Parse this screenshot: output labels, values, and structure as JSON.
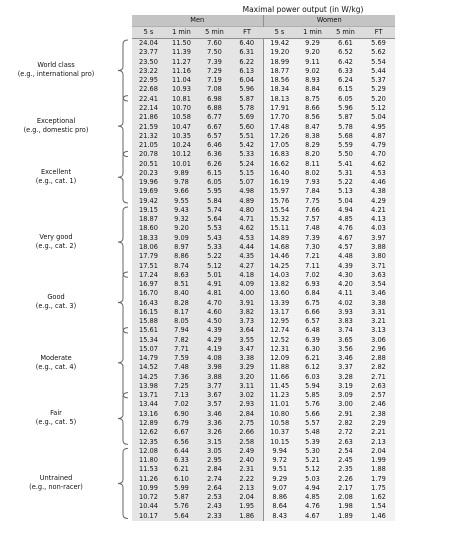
{
  "title": "Maximal power output (in W/kg)",
  "groups": [
    "Men",
    "Women"
  ],
  "subheaders": [
    "5 s",
    "1 min",
    "5 min",
    "FT",
    "5 s",
    "1 min",
    "5 min",
    "FT"
  ],
  "categories": [
    {
      "line1": "World class",
      "line2": "(e.g., international pro)"
    },
    {
      "line1": "Exceptional",
      "line2": "(e.g., domestic pro)"
    },
    {
      "line1": "Excellent",
      "line2": "(e.g., cat. 1)"
    },
    {
      "line1": "Very good",
      "line2": "(e.g., cat. 2)"
    },
    {
      "line1": "Good",
      "line2": "(e.g., cat. 3)"
    },
    {
      "line1": "Moderate",
      "line2": "(e.g., cat. 4)"
    },
    {
      "line1": "Fair",
      "line2": "(e.g., cat. 5)"
    },
    {
      "line1": "Untrained",
      "line2": "(e.g., non-racer)"
    }
  ],
  "rows": [
    [
      "24.04",
      "11.50",
      "7.60",
      "6.40",
      "19.42",
      "9.29",
      "6.61",
      "5.69"
    ],
    [
      "23.77",
      "11.39",
      "7.50",
      "6.31",
      "19.20",
      "9.20",
      "6.52",
      "5.62"
    ],
    [
      "23.50",
      "11.27",
      "7.39",
      "6.22",
      "18.99",
      "9.11",
      "6.42",
      "5.54"
    ],
    [
      "23.22",
      "11.16",
      "7.29",
      "6.13",
      "18.77",
      "9.02",
      "6.33",
      "5.44"
    ],
    [
      "22.95",
      "11.04",
      "7.19",
      "6.04",
      "18.56",
      "8.93",
      "6.24",
      "5.37"
    ],
    [
      "22.68",
      "10.93",
      "7.08",
      "5.96",
      "18.34",
      "8.84",
      "6.15",
      "5.29"
    ],
    [
      "22.41",
      "10.81",
      "6.98",
      "5.87",
      "18.13",
      "8.75",
      "6.05",
      "5.20"
    ],
    [
      "22.14",
      "10.70",
      "6.88",
      "5.78",
      "17.91",
      "8.66",
      "5.96",
      "5.12"
    ],
    [
      "21.86",
      "10.58",
      "6.77",
      "5.69",
      "17.70",
      "8.56",
      "5.87",
      "5.04"
    ],
    [
      "21.59",
      "10.47",
      "6.67",
      "5.60",
      "17.48",
      "8.47",
      "5.78",
      "4.95"
    ],
    [
      "21.32",
      "10.35",
      "6.57",
      "5.51",
      "17.26",
      "8.38",
      "5.68",
      "4.87"
    ],
    [
      "21.05",
      "10.24",
      "6.46",
      "5.42",
      "17.05",
      "8.29",
      "5.59",
      "4.79"
    ],
    [
      "20.78",
      "10.12",
      "6.36",
      "5.33",
      "16.83",
      "8.20",
      "5.50",
      "4.70"
    ],
    [
      "20.51",
      "10.01",
      "6.26",
      "5.24",
      "16.62",
      "8.11",
      "5.41",
      "4.62"
    ],
    [
      "20.23",
      "9.89",
      "6.15",
      "5.15",
      "16.40",
      "8.02",
      "5.31",
      "4.53"
    ],
    [
      "19.96",
      "9.78",
      "6.05",
      "5.07",
      "16.19",
      "7.93",
      "5.22",
      "4.46"
    ],
    [
      "19.69",
      "9.66",
      "5.95",
      "4.98",
      "15.97",
      "7.84",
      "5.13",
      "4.38"
    ],
    [
      "19.42",
      "9.55",
      "5.84",
      "4.89",
      "15.76",
      "7.75",
      "5.04",
      "4.29"
    ],
    [
      "19.15",
      "9.43",
      "5.74",
      "4.80",
      "15.54",
      "7.66",
      "4.94",
      "4.21"
    ],
    [
      "18.87",
      "9.32",
      "5.64",
      "4.71",
      "15.32",
      "7.57",
      "4.85",
      "4.13"
    ],
    [
      "18.60",
      "9.20",
      "5.53",
      "4.62",
      "15.11",
      "7.48",
      "4.76",
      "4.03"
    ],
    [
      "18.33",
      "9.09",
      "5.43",
      "4.53",
      "14.89",
      "7.39",
      "4.67",
      "3.97"
    ],
    [
      "18.06",
      "8.97",
      "5.33",
      "4.44",
      "14.68",
      "7.30",
      "4.57",
      "3.88"
    ],
    [
      "17.79",
      "8.86",
      "5.22",
      "4.35",
      "14.46",
      "7.21",
      "4.48",
      "3.80"
    ],
    [
      "17.51",
      "8.74",
      "5.12",
      "4.27",
      "14.25",
      "7.11",
      "4.39",
      "3.71"
    ],
    [
      "17.24",
      "8.63",
      "5.01",
      "4.18",
      "14.03",
      "7.02",
      "4.30",
      "3.63"
    ],
    [
      "16.97",
      "8.51",
      "4.91",
      "4.09",
      "13.82",
      "6.93",
      "4.20",
      "3.54"
    ],
    [
      "16.70",
      "8.40",
      "4.81",
      "4.00",
      "13.60",
      "6.84",
      "4.11",
      "3.46"
    ],
    [
      "16.43",
      "8.28",
      "4.70",
      "3.91",
      "13.39",
      "6.75",
      "4.02",
      "3.38"
    ],
    [
      "16.15",
      "8.17",
      "4.60",
      "3.82",
      "13.17",
      "6.66",
      "3.93",
      "3.31"
    ],
    [
      "15.88",
      "8.05",
      "4.50",
      "3.73",
      "12.95",
      "6.57",
      "3.83",
      "3.21"
    ],
    [
      "15.61",
      "7.94",
      "4.39",
      "3.64",
      "12.74",
      "6.48",
      "3.74",
      "3.13"
    ],
    [
      "15.34",
      "7.82",
      "4.29",
      "3.55",
      "12.52",
      "6.39",
      "3.65",
      "3.06"
    ],
    [
      "15.07",
      "7.71",
      "4.19",
      "3.47",
      "12.31",
      "6.30",
      "3.56",
      "2.96"
    ],
    [
      "14.79",
      "7.59",
      "4.08",
      "3.38",
      "12.09",
      "6.21",
      "3.46",
      "2.88"
    ],
    [
      "14.52",
      "7.48",
      "3.98",
      "3.29",
      "11.88",
      "6.12",
      "3.37",
      "2.82"
    ],
    [
      "14.25",
      "7.36",
      "3.88",
      "3.20",
      "11.66",
      "6.03",
      "3.28",
      "2.71"
    ],
    [
      "13.98",
      "7.25",
      "3.77",
      "3.11",
      "11.45",
      "5.94",
      "3.19",
      "2.63"
    ],
    [
      "13.71",
      "7.13",
      "3.67",
      "3.02",
      "11.23",
      "5.85",
      "3.09",
      "2.57"
    ],
    [
      "13.44",
      "7.02",
      "3.57",
      "2.93",
      "11.01",
      "5.76",
      "3.00",
      "2.46"
    ],
    [
      "13.16",
      "6.90",
      "3.46",
      "2.84",
      "10.80",
      "5.66",
      "2.91",
      "2.38"
    ],
    [
      "12.89",
      "6.79",
      "3.36",
      "2.75",
      "10.58",
      "5.57",
      "2.82",
      "2.29"
    ],
    [
      "12.62",
      "6.67",
      "3.26",
      "2.66",
      "10.37",
      "5.48",
      "2.72",
      "2.21"
    ],
    [
      "12.35",
      "6.56",
      "3.15",
      "2.58",
      "10.15",
      "5.39",
      "2.63",
      "2.13"
    ],
    [
      "12.08",
      "6.44",
      "3.05",
      "2.49",
      "9.94",
      "5.30",
      "2.54",
      "2.04"
    ],
    [
      "11.80",
      "6.33",
      "2.95",
      "2.40",
      "9.72",
      "5.21",
      "2.45",
      "1.99"
    ],
    [
      "11.53",
      "6.21",
      "2.84",
      "2.31",
      "9.51",
      "5.12",
      "2.35",
      "1.88"
    ],
    [
      "11.26",
      "6.10",
      "2.74",
      "2.22",
      "9.29",
      "5.03",
      "2.26",
      "1.79"
    ],
    [
      "10.99",
      "5.99",
      "2.64",
      "2.13",
      "9.07",
      "4.94",
      "2.17",
      "1.75"
    ],
    [
      "10.72",
      "5.87",
      "2.53",
      "2.04",
      "8.86",
      "4.85",
      "2.08",
      "1.62"
    ],
    [
      "10.44",
      "5.76",
      "2.43",
      "1.95",
      "8.64",
      "4.76",
      "1.98",
      "1.54"
    ],
    [
      "10.17",
      "5.64",
      "2.33",
      "1.86",
      "8.43",
      "4.67",
      "1.89",
      "1.46"
    ]
  ]
}
